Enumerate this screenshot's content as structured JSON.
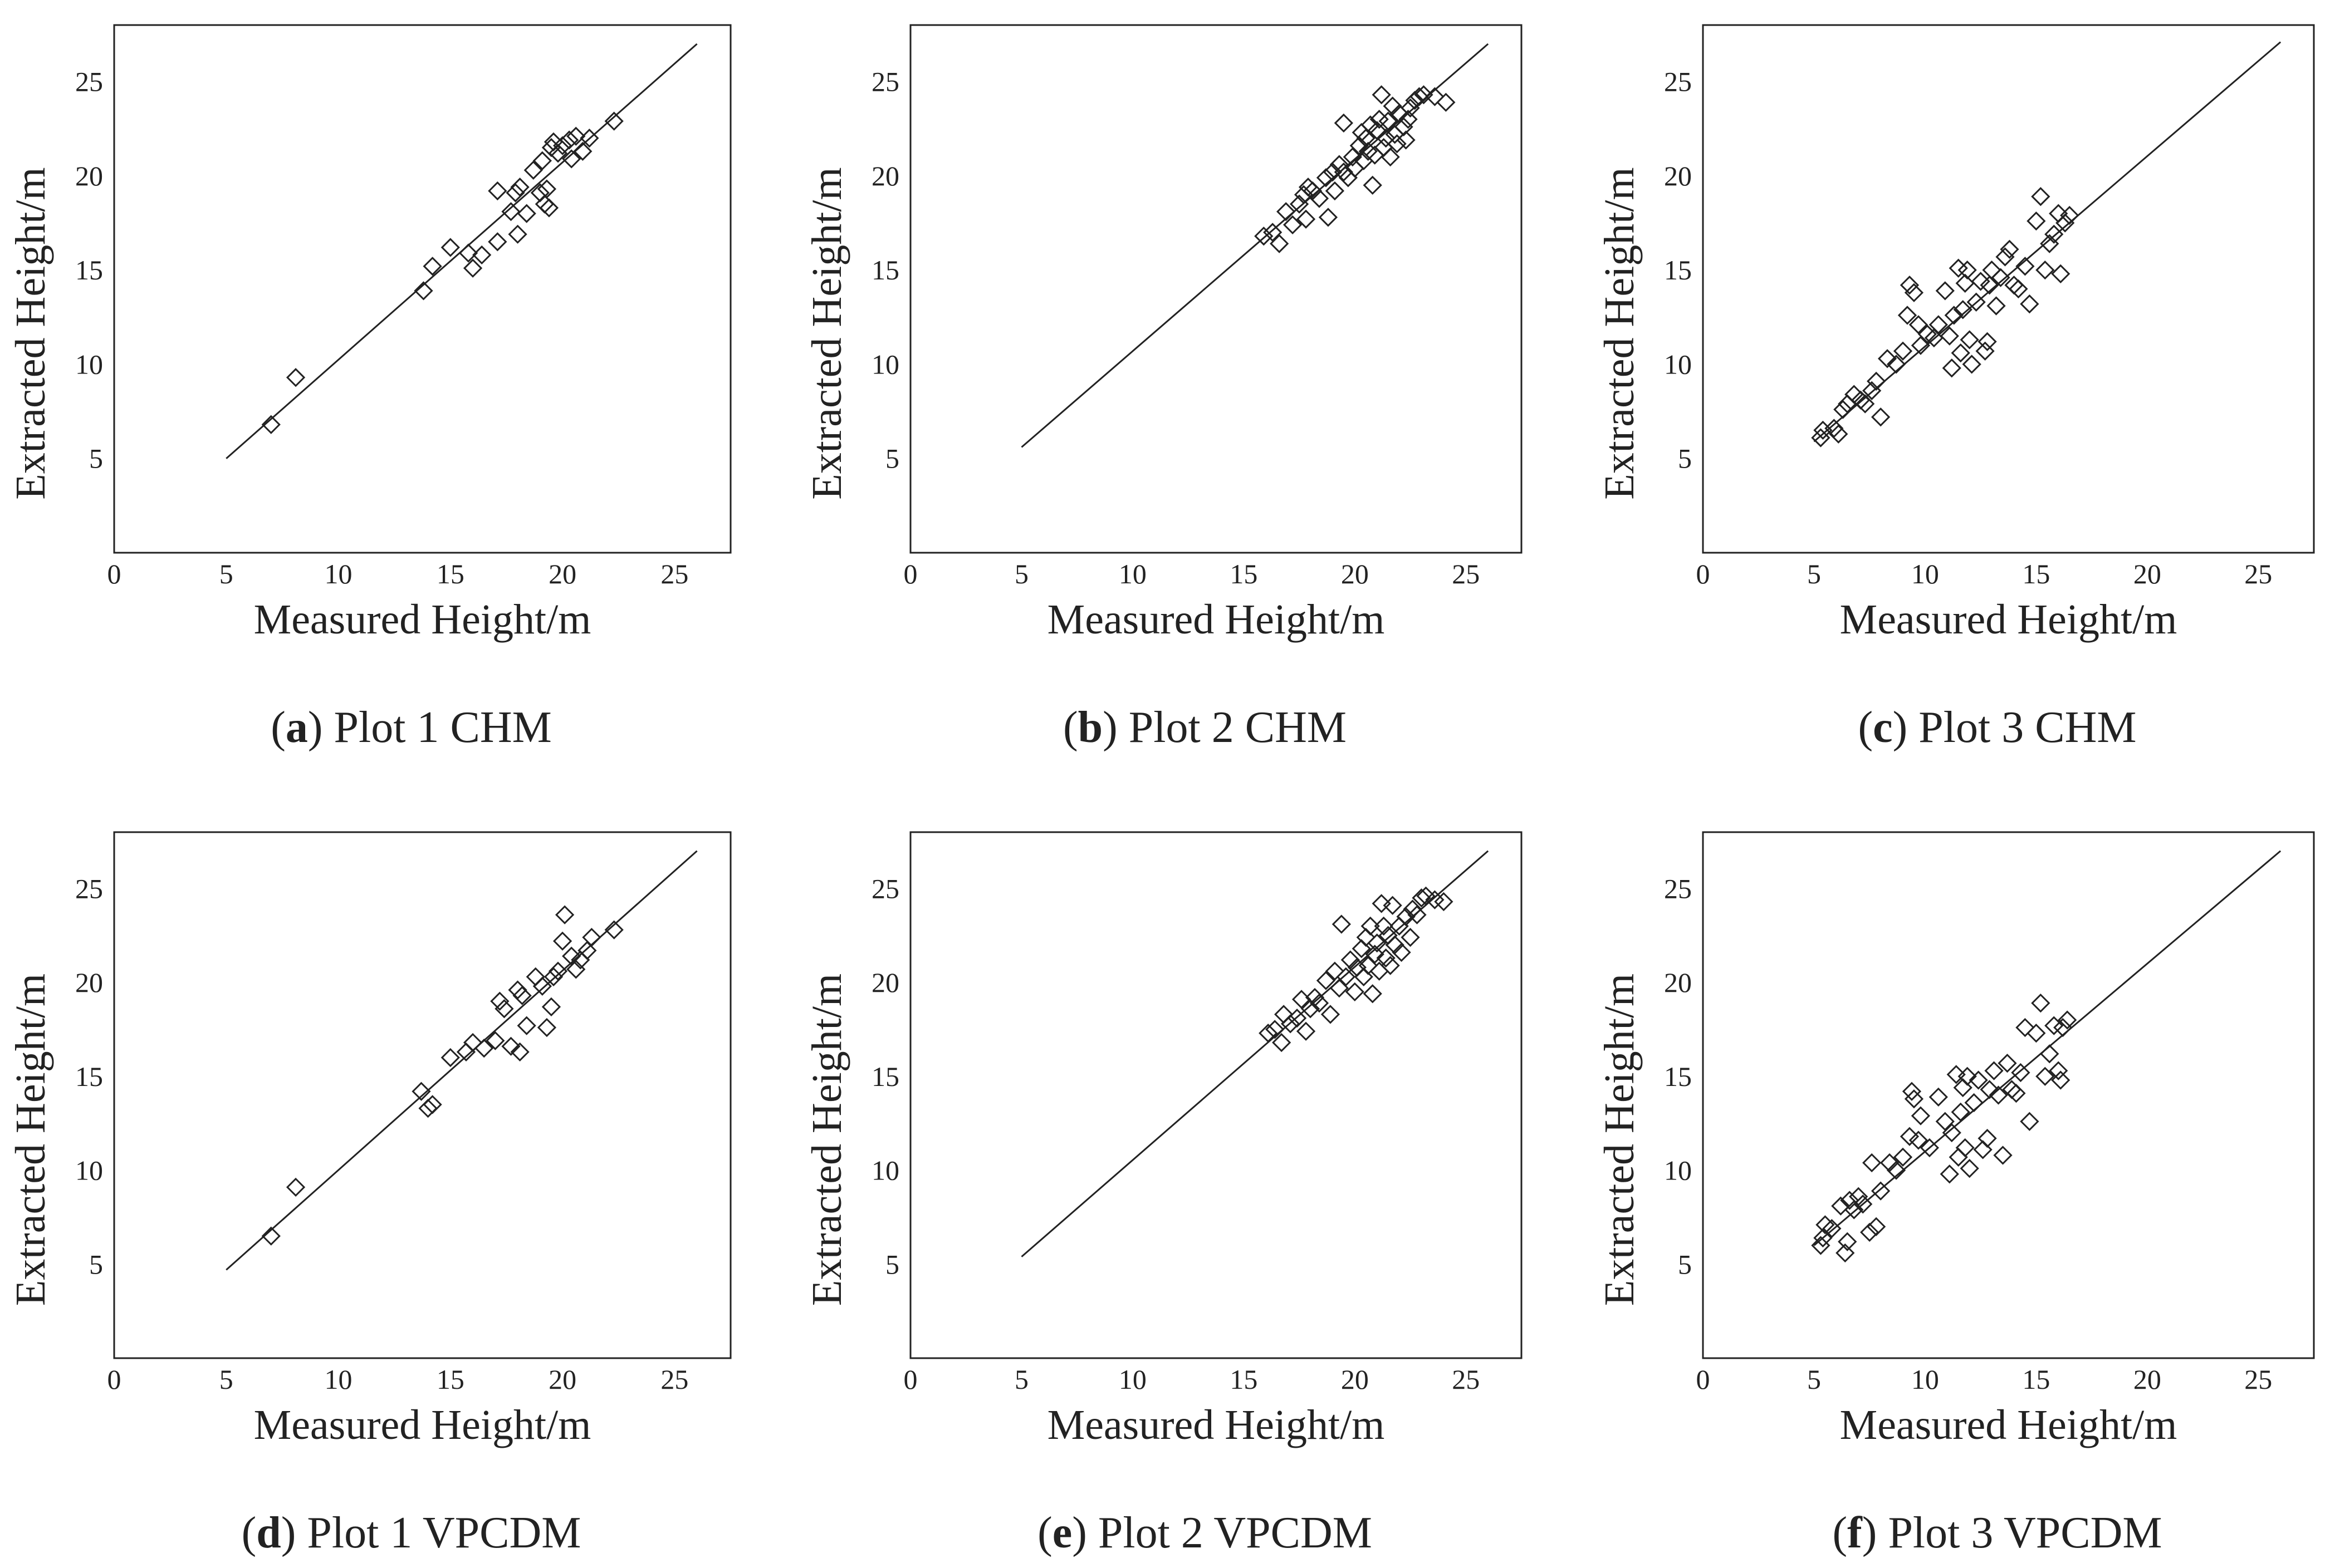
{
  "chart_data": [
    {
      "type": "scatter",
      "id": "a",
      "caption": {
        "letter": "a",
        "text": "Plot 1 CHM"
      },
      "xlabel": "Measured Height/m",
      "ylabel": "Extracted Height/m",
      "xlim": [
        0,
        27.5
      ],
      "ylim": [
        0,
        28
      ],
      "xticks": [
        0,
        5,
        10,
        15,
        20,
        25
      ],
      "yticks": [
        5,
        10,
        15,
        20,
        25
      ],
      "points": [
        [
          7.0,
          6.8
        ],
        [
          8.1,
          9.3
        ],
        [
          13.8,
          13.9
        ],
        [
          14.2,
          15.2
        ],
        [
          15.0,
          16.2
        ],
        [
          15.8,
          15.9
        ],
        [
          16.0,
          15.1
        ],
        [
          16.4,
          15.8
        ],
        [
          17.1,
          16.5
        ],
        [
          17.1,
          19.2
        ],
        [
          17.7,
          18.1
        ],
        [
          17.9,
          19.1
        ],
        [
          18.0,
          16.9
        ],
        [
          18.1,
          19.4
        ],
        [
          18.4,
          18.0
        ],
        [
          18.7,
          20.3
        ],
        [
          19.0,
          19.1
        ],
        [
          19.1,
          20.8
        ],
        [
          19.2,
          18.5
        ],
        [
          19.3,
          19.3
        ],
        [
          19.4,
          18.3
        ],
        [
          19.5,
          21.5
        ],
        [
          19.6,
          21.8
        ],
        [
          19.8,
          21.2
        ],
        [
          20.0,
          21.6
        ],
        [
          20.3,
          21.9
        ],
        [
          20.4,
          20.9
        ],
        [
          20.6,
          22.1
        ],
        [
          20.9,
          21.3
        ],
        [
          21.2,
          22.0
        ],
        [
          22.3,
          22.9
        ]
      ],
      "fit_line": {
        "x": [
          5,
          26
        ],
        "y": [
          5.0,
          27.0
        ]
      }
    },
    {
      "type": "scatter",
      "id": "b",
      "caption": {
        "letter": "b",
        "text": "Plot 2 CHM"
      },
      "xlabel": "Measured Height/m",
      "ylabel": "Extracted Height/m",
      "xlim": [
        0,
        27.5
      ],
      "ylim": [
        0,
        28
      ],
      "xticks": [
        0,
        5,
        10,
        15,
        20,
        25
      ],
      "yticks": [
        5,
        10,
        15,
        20,
        25
      ],
      "points": [
        [
          15.9,
          16.8
        ],
        [
          16.3,
          17.0
        ],
        [
          16.6,
          16.4
        ],
        [
          16.9,
          18.1
        ],
        [
          17.2,
          17.4
        ],
        [
          17.5,
          18.5
        ],
        [
          17.7,
          19.0
        ],
        [
          17.8,
          17.7
        ],
        [
          17.9,
          19.4
        ],
        [
          18.1,
          19.2
        ],
        [
          18.4,
          18.8
        ],
        [
          18.7,
          19.9
        ],
        [
          18.8,
          17.8
        ],
        [
          19.0,
          20.2
        ],
        [
          19.1,
          19.2
        ],
        [
          19.3,
          20.6
        ],
        [
          19.5,
          20.2
        ],
        [
          19.5,
          22.8
        ],
        [
          19.7,
          19.9
        ],
        [
          19.9,
          21.0
        ],
        [
          20.0,
          20.4
        ],
        [
          20.2,
          21.6
        ],
        [
          20.3,
          22.3
        ],
        [
          20.4,
          20.8
        ],
        [
          20.5,
          22.0
        ],
        [
          20.6,
          21.3
        ],
        [
          20.7,
          22.7
        ],
        [
          20.8,
          19.5
        ],
        [
          20.9,
          21.1
        ],
        [
          21.0,
          22.4
        ],
        [
          21.1,
          23.0
        ],
        [
          21.2,
          24.3
        ],
        [
          21.3,
          21.5
        ],
        [
          21.4,
          22.0
        ],
        [
          21.5,
          22.9
        ],
        [
          21.6,
          21.0
        ],
        [
          21.7,
          23.7
        ],
        [
          21.8,
          22.2
        ],
        [
          21.9,
          21.7
        ],
        [
          22.0,
          23.3
        ],
        [
          22.2,
          22.6
        ],
        [
          22.3,
          21.9
        ],
        [
          22.4,
          23.0
        ],
        [
          22.5,
          23.6
        ],
        [
          22.7,
          24.0
        ],
        [
          22.9,
          24.2
        ],
        [
          23.1,
          24.3
        ],
        [
          23.6,
          24.2
        ],
        [
          24.1,
          23.9
        ]
      ],
      "fit_line": {
        "x": [
          5,
          26
        ],
        "y": [
          5.6,
          27.0
        ]
      }
    },
    {
      "type": "scatter",
      "id": "c",
      "caption": {
        "letter": "c",
        "text": "Plot 3 CHM"
      },
      "xlabel": "Measured Height/m",
      "ylabel": "Extracted Height/m",
      "xlim": [
        0,
        27.5
      ],
      "ylim": [
        0,
        28
      ],
      "xticks": [
        0,
        5,
        10,
        15,
        20,
        25
      ],
      "yticks": [
        5,
        10,
        15,
        20,
        25
      ],
      "points": [
        [
          5.3,
          6.1
        ],
        [
          5.4,
          6.5
        ],
        [
          5.9,
          6.6
        ],
        [
          6.1,
          6.3
        ],
        [
          6.3,
          7.6
        ],
        [
          6.5,
          7.9
        ],
        [
          6.8,
          8.4
        ],
        [
          7.1,
          8.1
        ],
        [
          7.3,
          7.9
        ],
        [
          7.6,
          8.6
        ],
        [
          7.8,
          9.1
        ],
        [
          8.0,
          7.2
        ],
        [
          8.3,
          10.3
        ],
        [
          8.7,
          10.0
        ],
        [
          9.0,
          10.7
        ],
        [
          9.2,
          12.6
        ],
        [
          9.3,
          14.2
        ],
        [
          9.5,
          13.8
        ],
        [
          9.7,
          12.1
        ],
        [
          9.8,
          11.0
        ],
        [
          10.1,
          11.6
        ],
        [
          10.4,
          11.4
        ],
        [
          10.6,
          12.1
        ],
        [
          10.9,
          13.9
        ],
        [
          11.1,
          11.5
        ],
        [
          11.2,
          9.8
        ],
        [
          11.3,
          12.6
        ],
        [
          11.5,
          15.1
        ],
        [
          11.6,
          10.6
        ],
        [
          11.7,
          12.9
        ],
        [
          11.8,
          14.3
        ],
        [
          11.9,
          15.0
        ],
        [
          12.0,
          11.3
        ],
        [
          12.1,
          10.0
        ],
        [
          12.3,
          13.3
        ],
        [
          12.5,
          14.4
        ],
        [
          12.7,
          10.7
        ],
        [
          12.8,
          11.2
        ],
        [
          12.9,
          14.2
        ],
        [
          13.0,
          15.0
        ],
        [
          13.2,
          13.1
        ],
        [
          13.4,
          14.6
        ],
        [
          13.6,
          15.7
        ],
        [
          13.8,
          16.1
        ],
        [
          14.0,
          14.2
        ],
        [
          14.2,
          14.0
        ],
        [
          14.5,
          15.2
        ],
        [
          14.7,
          13.2
        ],
        [
          15.0,
          17.6
        ],
        [
          15.2,
          18.9
        ],
        [
          15.4,
          15.0
        ],
        [
          15.6,
          16.4
        ],
        [
          15.8,
          16.9
        ],
        [
          16.0,
          18.0
        ],
        [
          16.1,
          14.8
        ],
        [
          16.3,
          17.5
        ],
        [
          16.5,
          17.9
        ]
      ],
      "fit_line": {
        "x": [
          5,
          26
        ],
        "y": [
          5.9,
          27.1
        ]
      }
    },
    {
      "type": "scatter",
      "id": "d",
      "caption": {
        "letter": "d",
        "text": "Plot 1 VPCDM"
      },
      "xlabel": "Measured Height/m",
      "ylabel": "Extracted Height/m",
      "xlim": [
        0,
        27.5
      ],
      "ylim": [
        0,
        28
      ],
      "xticks": [
        0,
        5,
        10,
        15,
        20,
        25
      ],
      "yticks": [
        5,
        10,
        15,
        20,
        25
      ],
      "points": [
        [
          7.0,
          6.5
        ],
        [
          8.1,
          9.1
        ],
        [
          13.7,
          14.2
        ],
        [
          14.0,
          13.3
        ],
        [
          14.2,
          13.5
        ],
        [
          15.0,
          16.0
        ],
        [
          15.7,
          16.3
        ],
        [
          16.0,
          16.8
        ],
        [
          16.5,
          16.5
        ],
        [
          17.0,
          16.9
        ],
        [
          17.2,
          19.0
        ],
        [
          17.4,
          18.6
        ],
        [
          17.7,
          16.6
        ],
        [
          18.0,
          19.6
        ],
        [
          18.1,
          16.3
        ],
        [
          18.2,
          19.3
        ],
        [
          18.4,
          17.7
        ],
        [
          18.8,
          20.3
        ],
        [
          19.1,
          19.8
        ],
        [
          19.3,
          17.6
        ],
        [
          19.5,
          18.7
        ],
        [
          19.6,
          20.3
        ],
        [
          19.8,
          20.6
        ],
        [
          20.0,
          22.2
        ],
        [
          20.1,
          23.6
        ],
        [
          20.4,
          21.4
        ],
        [
          20.6,
          20.7
        ],
        [
          20.8,
          21.2
        ],
        [
          21.1,
          21.7
        ],
        [
          21.3,
          22.4
        ],
        [
          22.3,
          22.8
        ]
      ],
      "fit_line": {
        "x": [
          5,
          26
        ],
        "y": [
          4.7,
          27.0
        ]
      }
    },
    {
      "type": "scatter",
      "id": "e",
      "caption": {
        "letter": "e",
        "text": "Plot 2 VPCDM"
      },
      "xlabel": "Measured Height/m",
      "ylabel": "Extracted Height/m",
      "xlim": [
        0,
        27.5
      ],
      "ylim": [
        0,
        28
      ],
      "xticks": [
        0,
        5,
        10,
        15,
        20,
        25
      ],
      "yticks": [
        5,
        10,
        15,
        20,
        25
      ],
      "points": [
        [
          16.1,
          17.3
        ],
        [
          16.4,
          17.5
        ],
        [
          16.7,
          16.8
        ],
        [
          16.8,
          18.3
        ],
        [
          17.1,
          17.8
        ],
        [
          17.4,
          18.1
        ],
        [
          17.6,
          19.1
        ],
        [
          17.8,
          17.4
        ],
        [
          18.0,
          18.6
        ],
        [
          18.2,
          19.2
        ],
        [
          18.4,
          18.9
        ],
        [
          18.7,
          20.1
        ],
        [
          18.9,
          18.3
        ],
        [
          19.1,
          20.6
        ],
        [
          19.3,
          19.7
        ],
        [
          19.4,
          23.1
        ],
        [
          19.6,
          20.3
        ],
        [
          19.8,
          21.2
        ],
        [
          20.0,
          19.5
        ],
        [
          20.1,
          20.8
        ],
        [
          20.3,
          21.8
        ],
        [
          20.4,
          20.3
        ],
        [
          20.5,
          22.4
        ],
        [
          20.6,
          20.9
        ],
        [
          20.7,
          23.0
        ],
        [
          20.8,
          19.4
        ],
        [
          20.9,
          21.5
        ],
        [
          21.0,
          22.1
        ],
        [
          21.1,
          20.6
        ],
        [
          21.2,
          24.2
        ],
        [
          21.3,
          23.0
        ],
        [
          21.4,
          21.3
        ],
        [
          21.5,
          22.5
        ],
        [
          21.6,
          20.9
        ],
        [
          21.7,
          24.1
        ],
        [
          21.8,
          22.0
        ],
        [
          22.0,
          23.0
        ],
        [
          22.1,
          21.6
        ],
        [
          22.3,
          23.5
        ],
        [
          22.5,
          22.4
        ],
        [
          22.6,
          23.9
        ],
        [
          22.8,
          23.6
        ],
        [
          23.0,
          24.5
        ],
        [
          23.2,
          24.6
        ],
        [
          23.6,
          24.4
        ],
        [
          24.0,
          24.3
        ]
      ],
      "fit_line": {
        "x": [
          5,
          26
        ],
        "y": [
          5.4,
          27.0
        ]
      }
    },
    {
      "type": "scatter",
      "id": "f",
      "caption": {
        "letter": "f",
        "text": "Plot 3 VPCDM"
      },
      "xlabel": "Measured Height/m",
      "ylabel": "Extracted Height/m",
      "xlim": [
        0,
        27.5
      ],
      "ylim": [
        0,
        28
      ],
      "xticks": [
        0,
        5,
        10,
        15,
        20,
        25
      ],
      "yticks": [
        5,
        10,
        15,
        20,
        25
      ],
      "points": [
        [
          5.3,
          6.0
        ],
        [
          5.4,
          6.4
        ],
        [
          5.5,
          7.1
        ],
        [
          5.8,
          6.9
        ],
        [
          6.2,
          8.1
        ],
        [
          6.4,
          5.6
        ],
        [
          6.5,
          6.2
        ],
        [
          6.6,
          8.4
        ],
        [
          6.8,
          7.9
        ],
        [
          7.0,
          8.6
        ],
        [
          7.2,
          8.2
        ],
        [
          7.5,
          6.7
        ],
        [
          7.6,
          10.4
        ],
        [
          7.8,
          7.0
        ],
        [
          8.0,
          8.9
        ],
        [
          8.4,
          10.4
        ],
        [
          8.7,
          10.0
        ],
        [
          9.0,
          10.7
        ],
        [
          9.3,
          11.8
        ],
        [
          9.4,
          14.2
        ],
        [
          9.5,
          13.8
        ],
        [
          9.7,
          11.6
        ],
        [
          9.8,
          12.9
        ],
        [
          10.2,
          11.2
        ],
        [
          10.6,
          13.9
        ],
        [
          10.9,
          12.6
        ],
        [
          11.1,
          9.8
        ],
        [
          11.2,
          12.0
        ],
        [
          11.4,
          15.1
        ],
        [
          11.5,
          10.7
        ],
        [
          11.6,
          13.1
        ],
        [
          11.7,
          14.4
        ],
        [
          11.8,
          11.2
        ],
        [
          11.9,
          15.0
        ],
        [
          12.0,
          10.1
        ],
        [
          12.2,
          13.6
        ],
        [
          12.4,
          14.8
        ],
        [
          12.6,
          11.1
        ],
        [
          12.8,
          11.7
        ],
        [
          12.9,
          14.3
        ],
        [
          13.1,
          15.3
        ],
        [
          13.3,
          14.0
        ],
        [
          13.5,
          10.8
        ],
        [
          13.7,
          15.7
        ],
        [
          13.9,
          14.3
        ],
        [
          14.1,
          14.1
        ],
        [
          14.3,
          15.2
        ],
        [
          14.5,
          17.6
        ],
        [
          14.7,
          12.6
        ],
        [
          15.0,
          17.3
        ],
        [
          15.2,
          18.9
        ],
        [
          15.4,
          15.0
        ],
        [
          15.6,
          16.2
        ],
        [
          15.8,
          17.7
        ],
        [
          16.0,
          15.3
        ],
        [
          16.1,
          14.8
        ],
        [
          16.2,
          17.6
        ],
        [
          16.4,
          18.0
        ]
      ],
      "fit_line": {
        "x": [
          5,
          26
        ],
        "y": [
          6.0,
          27.0
        ]
      }
    }
  ]
}
